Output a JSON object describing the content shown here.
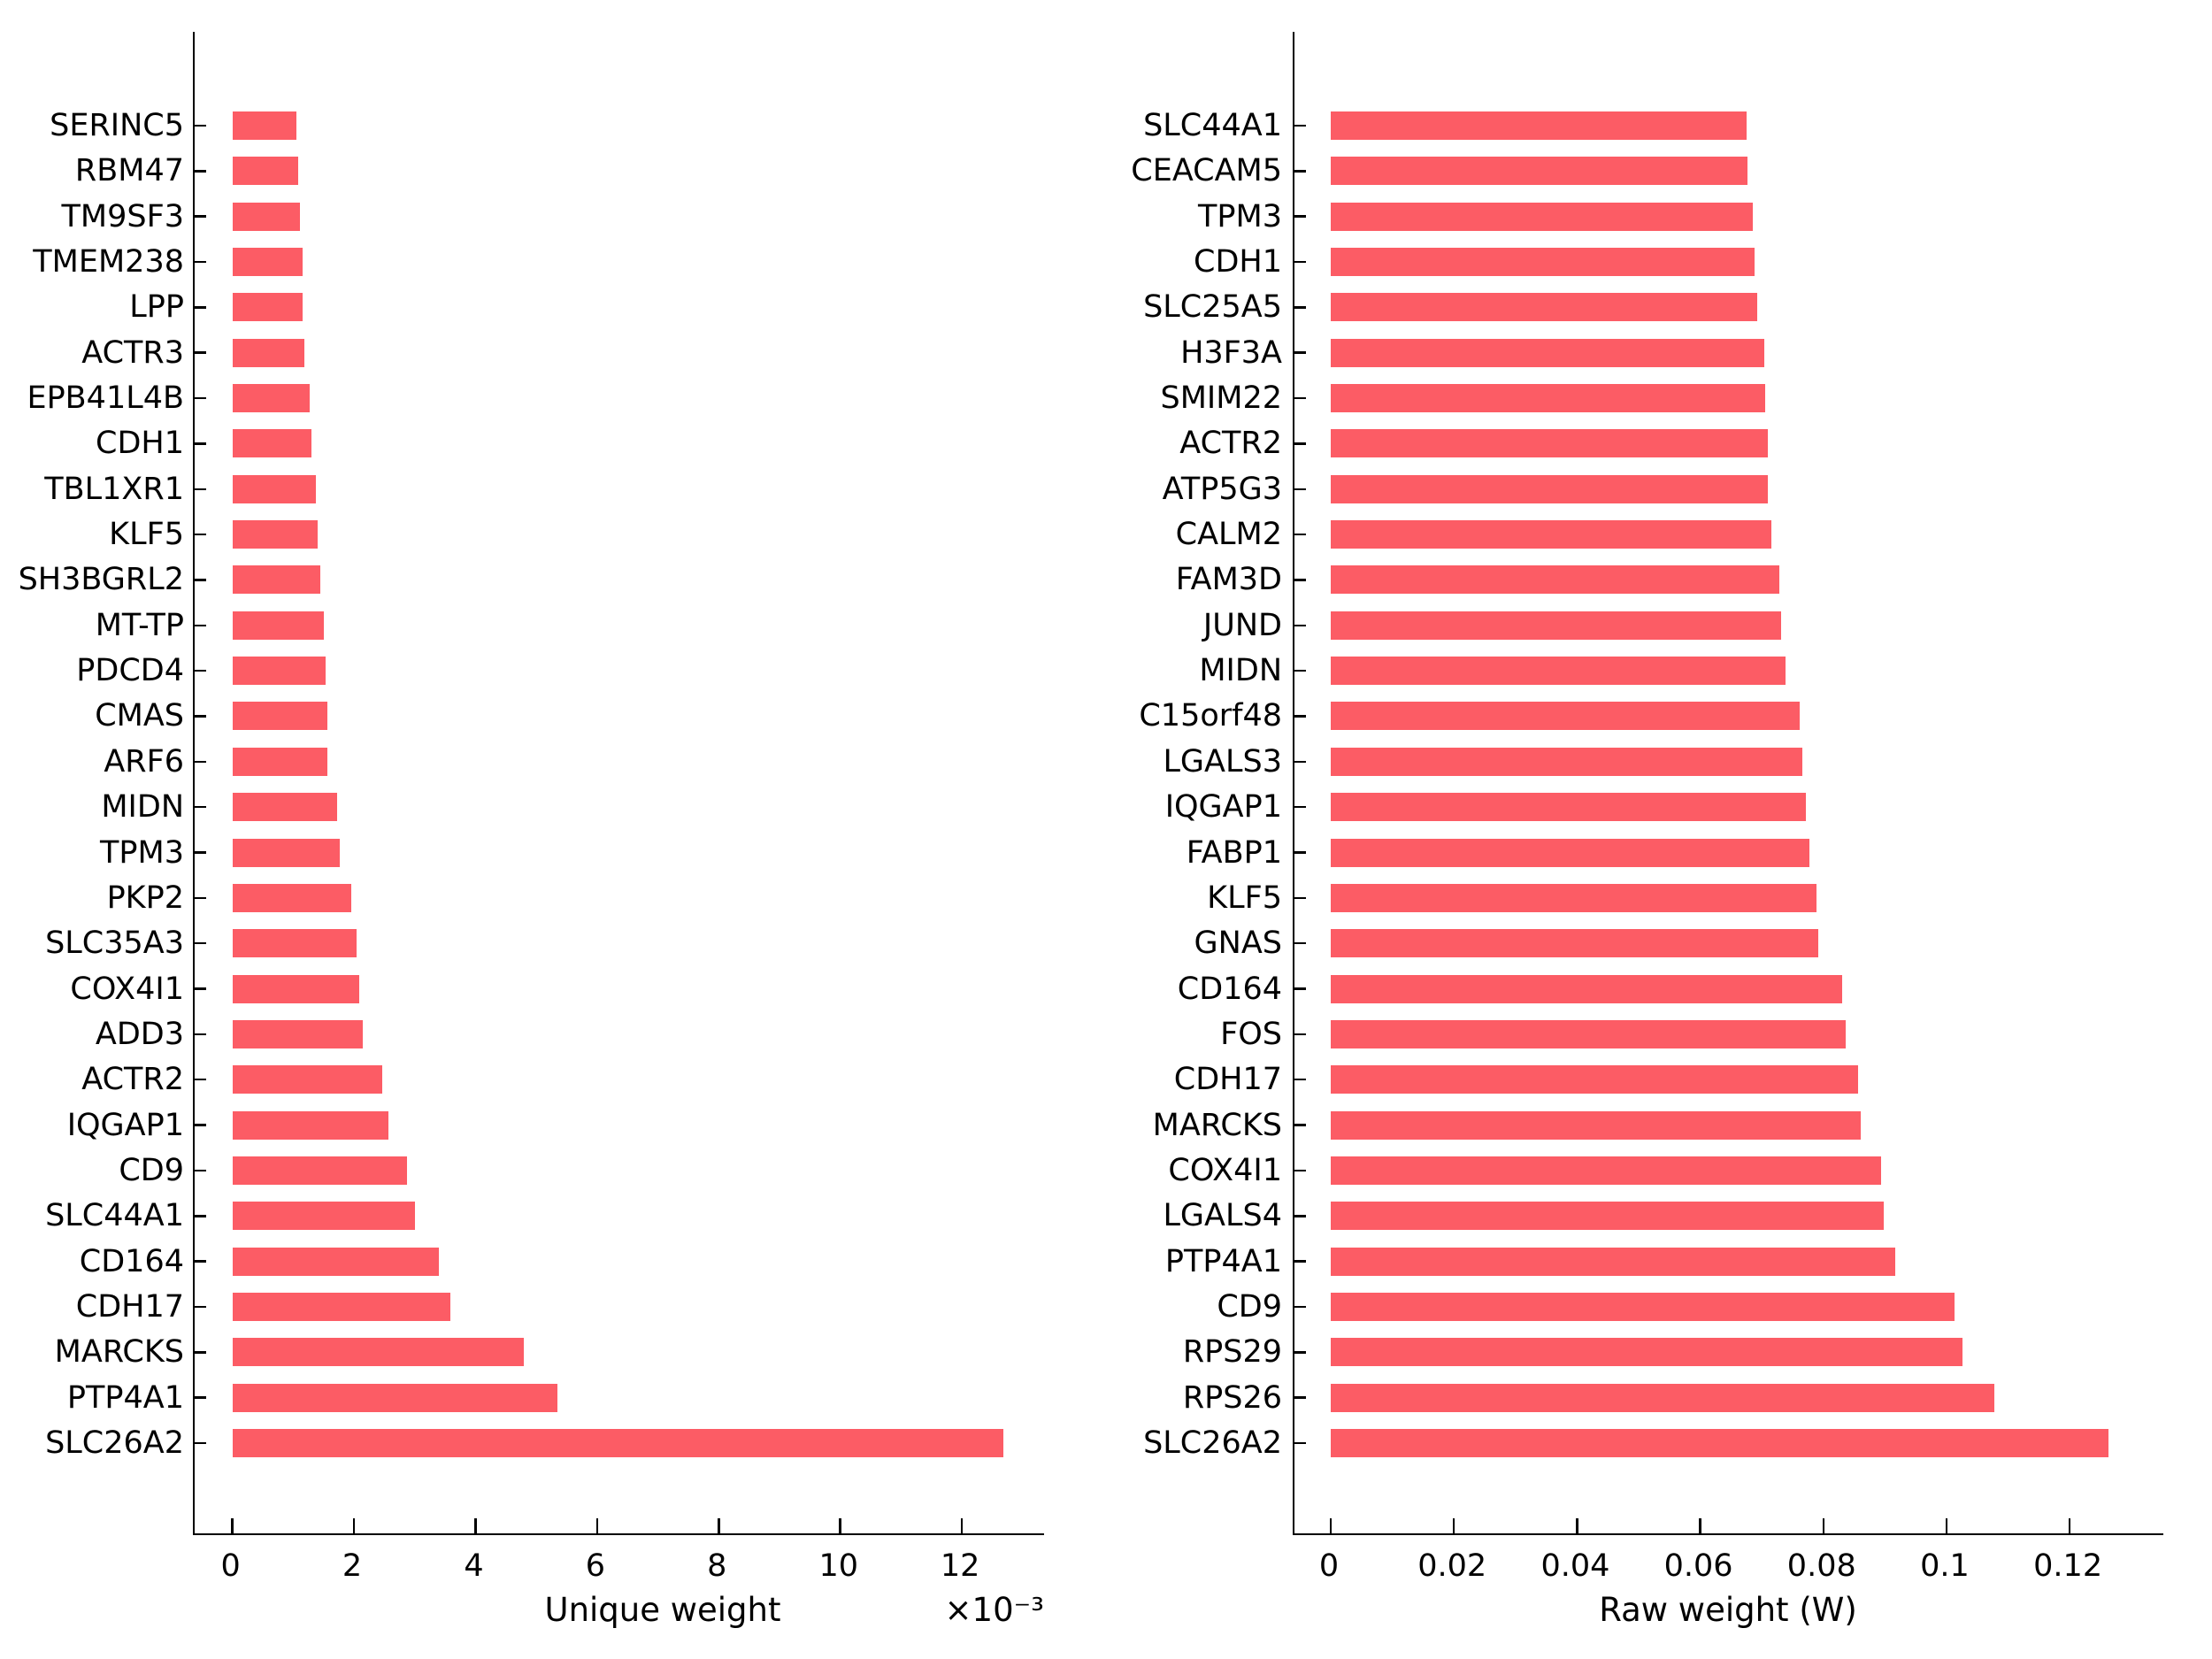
{
  "figure": {
    "background_color": "#ffffff",
    "text_color": "#000000",
    "bar_color": "#FC5C65"
  },
  "chart_data": [
    {
      "type": "bar",
      "orientation": "horizontal",
      "title": "",
      "xlabel": "Unique weight",
      "x_multiplier_label": "×10⁻³",
      "value_display_units": "1e-3",
      "bar_color": "#FC5C65",
      "grid": false,
      "legend": null,
      "xlim_display": [
        -0.62,
        13.38
      ],
      "xticks": [
        {
          "v": 0,
          "label": "0"
        },
        {
          "v": 2,
          "label": "2"
        },
        {
          "v": 4,
          "label": "4"
        },
        {
          "v": 6,
          "label": "6"
        },
        {
          "v": 8,
          "label": "8"
        },
        {
          "v": 10,
          "label": "10"
        },
        {
          "v": 12,
          "label": "12"
        }
      ],
      "categories": [
        "SERINC5",
        "RBM47",
        "TM9SF3",
        "TMEM238",
        "LPP",
        "ACTR3",
        "EPB41L4B",
        "CDH1",
        "TBL1XR1",
        "KLF5",
        "SH3BGRL2",
        "MT-TP",
        "PDCD4",
        "CMAS",
        "ARF6",
        "MIDN",
        "TPM3",
        "PKP2",
        "SLC35A3",
        "COX4I1",
        "ADD3",
        "ACTR2",
        "IQGAP1",
        "CD9",
        "SLC44A1",
        "CD164",
        "CDH17",
        "MARCKS",
        "PTP4A1",
        "SLC26A2"
      ],
      "values": [
        1.06,
        1.08,
        1.11,
        1.15,
        1.16,
        1.18,
        1.27,
        1.3,
        1.38,
        1.41,
        1.44,
        1.51,
        1.54,
        1.56,
        1.56,
        1.72,
        1.76,
        1.96,
        2.04,
        2.09,
        2.15,
        2.46,
        2.57,
        2.88,
        3.0,
        3.4,
        3.58,
        4.8,
        5.35,
        12.68
      ]
    },
    {
      "type": "bar",
      "orientation": "horizontal",
      "title": "",
      "xlabel": "Raw weight (W)",
      "x_multiplier_label": "",
      "value_display_units": "1",
      "bar_color": "#FC5C65",
      "grid": false,
      "legend": null,
      "xlim_display": [
        -0.0059,
        0.1355
      ],
      "xticks": [
        {
          "v": 0,
          "label": "0"
        },
        {
          "v": 0.02,
          "label": "0.02"
        },
        {
          "v": 0.04,
          "label": "0.04"
        },
        {
          "v": 0.06,
          "label": "0.06"
        },
        {
          "v": 0.08,
          "label": "0.08"
        },
        {
          "v": 0.1,
          "label": "0.1"
        },
        {
          "v": 0.12,
          "label": "0.12"
        }
      ],
      "categories": [
        "SLC44A1",
        "CEACAM5",
        "TPM3",
        "CDH1",
        "SLC25A5",
        "H3F3A",
        "SMIM22",
        "ACTR2",
        "ATP5G3",
        "CALM2",
        "FAM3D",
        "JUND",
        "MIDN",
        "C15orf48",
        "LGALS3",
        "IQGAP1",
        "FABP1",
        "KLF5",
        "GNAS",
        "CD164",
        "FOS",
        "CDH17",
        "MARCKS",
        "COX4I1",
        "LGALS4",
        "PTP4A1",
        "CD9",
        "RPS29",
        "RPS26",
        "SLC26A2"
      ],
      "values": [
        0.0675,
        0.0677,
        0.0686,
        0.0688,
        0.0693,
        0.0704,
        0.0705,
        0.071,
        0.071,
        0.0716,
        0.0729,
        0.0732,
        0.0738,
        0.0762,
        0.0766,
        0.0771,
        0.0777,
        0.0789,
        0.0792,
        0.083,
        0.0836,
        0.0857,
        0.086,
        0.0894,
        0.0898,
        0.0917,
        0.1013,
        0.1026,
        0.1078,
        0.1263
      ]
    }
  ]
}
